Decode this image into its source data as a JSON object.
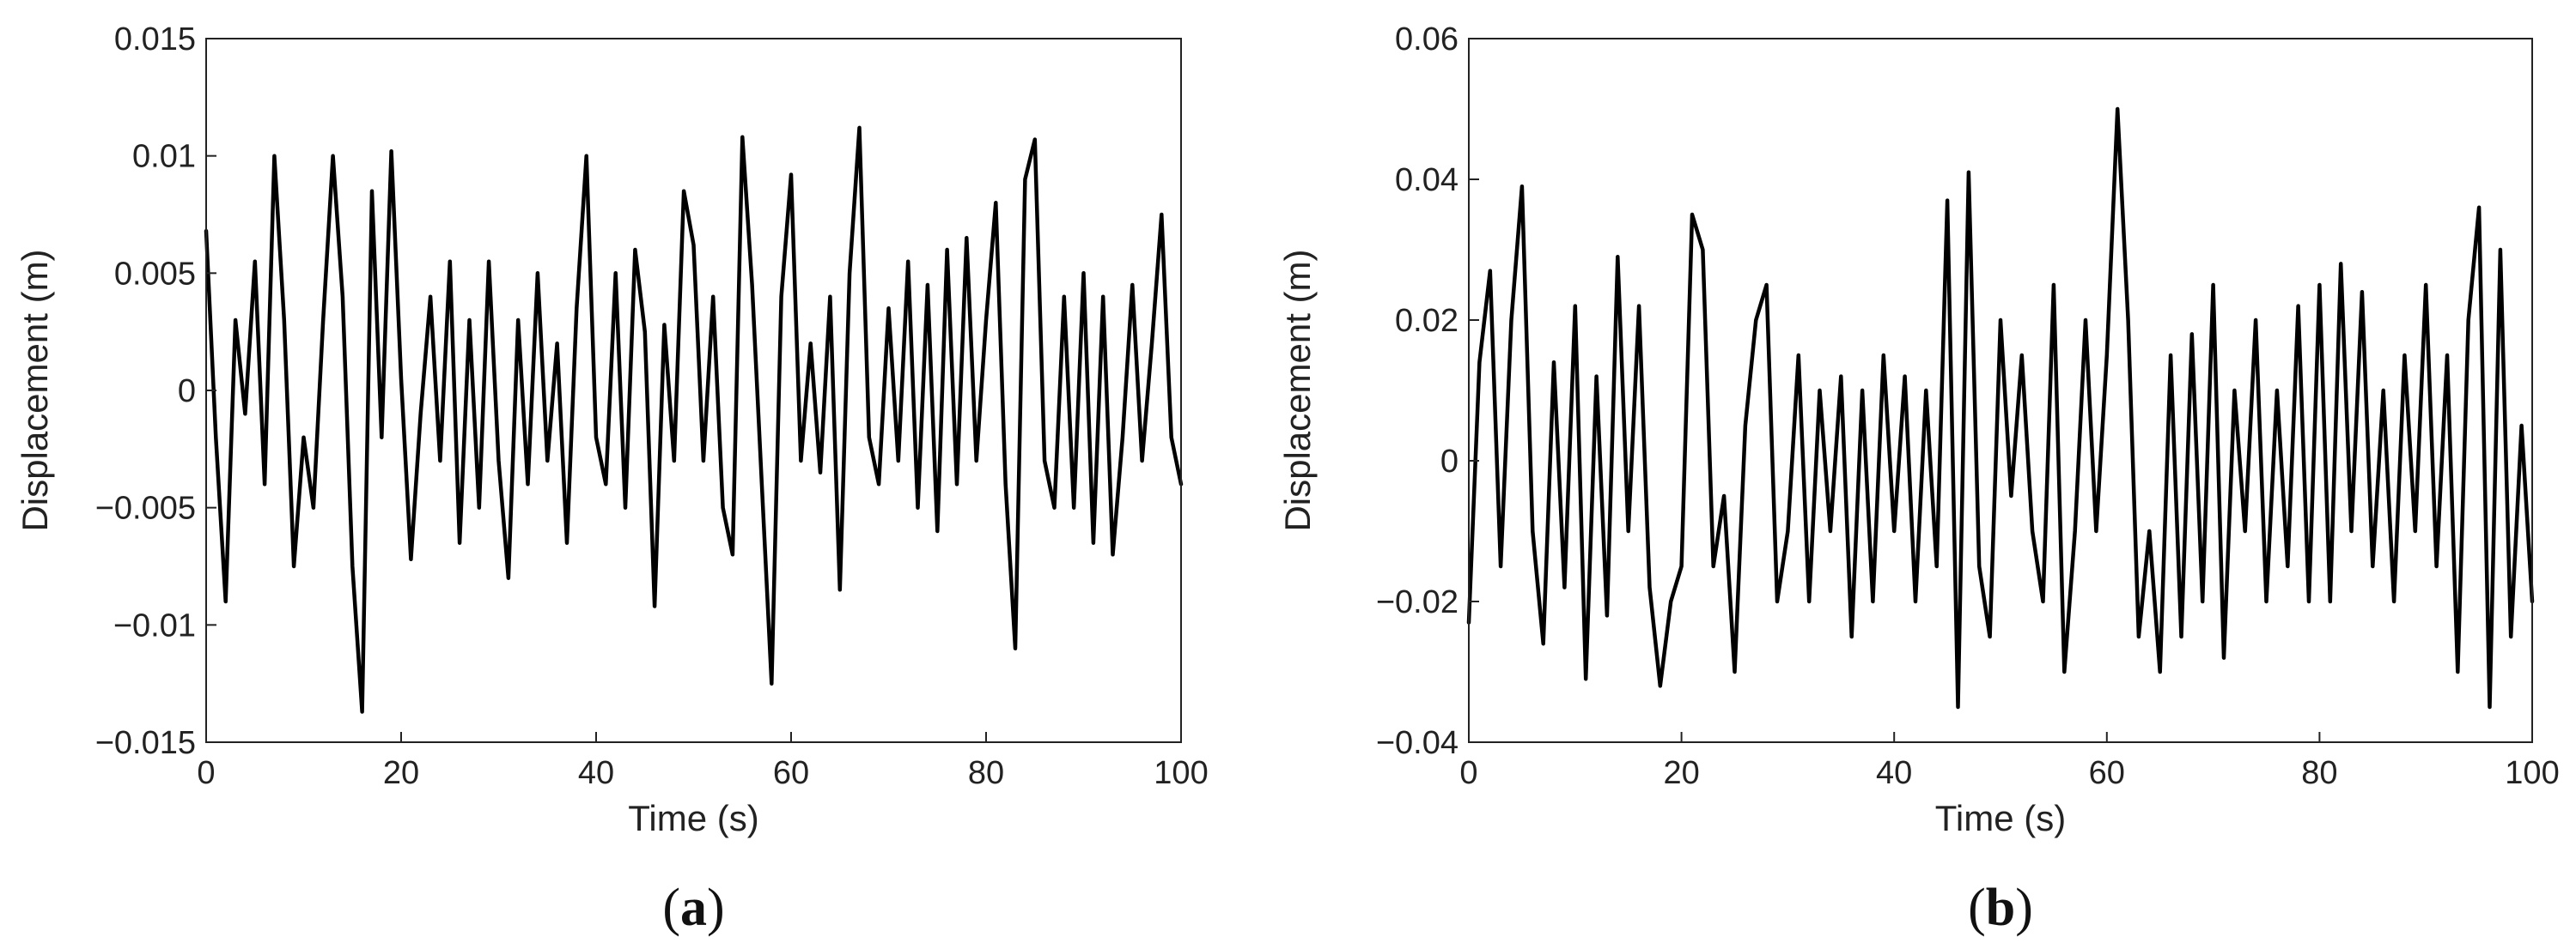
{
  "chart_data": [
    {
      "type": "line",
      "panel_label": {
        "open": "(",
        "letter": "a",
        "close": ")"
      },
      "xlabel": "Time (s)",
      "ylabel": "Displacement (m)",
      "xlim": [
        0,
        100
      ],
      "ylim": [
        -0.015,
        0.015
      ],
      "x_ticks": [
        0,
        20,
        40,
        60,
        80,
        100
      ],
      "x_tick_labels": [
        "0",
        "20",
        "40",
        "60",
        "80",
        "100"
      ],
      "y_ticks": [
        -0.015,
        -0.01,
        -0.005,
        0,
        0.005,
        0.01,
        0.015
      ],
      "y_tick_labels": [
        "−0.015",
        "−0.01",
        "−0.005",
        "0",
        "0.005",
        "0.01",
        "0.015"
      ],
      "grid": false,
      "color": "#000000",
      "series": [
        {
          "x": [
            0,
            1,
            2,
            3,
            4,
            5,
            6,
            7,
            8,
            9,
            10,
            11,
            12,
            13,
            14,
            15,
            16,
            17,
            18,
            19,
            20,
            21,
            22,
            23,
            24,
            25,
            26,
            27,
            28,
            29,
            30,
            31,
            32,
            33,
            34,
            35,
            36,
            37,
            38,
            39,
            40,
            41,
            42,
            43,
            44,
            45,
            46,
            47,
            48,
            49,
            50,
            51,
            52,
            53,
            54,
            55,
            56,
            57,
            58,
            59,
            60,
            61,
            62,
            63,
            64,
            65,
            66,
            67,
            68,
            69,
            70,
            71,
            72,
            73,
            74,
            75,
            76,
            77,
            78,
            79,
            80,
            81,
            82,
            83,
            84,
            85,
            86,
            87,
            88,
            89,
            90,
            91,
            92,
            93,
            94,
            95,
            96,
            97,
            98,
            99,
            100
          ],
          "y": [
            0.0068,
            -0.002,
            -0.009,
            0.003,
            -0.001,
            0.0055,
            -0.004,
            0.01,
            0.003,
            -0.0075,
            -0.002,
            -0.005,
            0.003,
            0.01,
            0.004,
            -0.0075,
            -0.0137,
            0.0085,
            -0.002,
            0.0102,
            0.0005,
            -0.0072,
            -0.001,
            0.004,
            -0.003,
            0.0055,
            -0.0065,
            0.003,
            -0.005,
            0.0055,
            -0.003,
            -0.008,
            0.003,
            -0.004,
            0.005,
            -0.003,
            0.002,
            -0.0065,
            0.0035,
            0.01,
            -0.002,
            -0.004,
            0.005,
            -0.005,
            0.006,
            0.0025,
            -0.0092,
            0.0028,
            -0.003,
            0.0085,
            0.0062,
            -0.003,
            0.004,
            -0.005,
            -0.007,
            0.0108,
            0.0045,
            -0.004,
            -0.0125,
            0.004,
            0.0092,
            -0.003,
            0.002,
            -0.0035,
            0.004,
            -0.0085,
            0.005,
            0.0112,
            -0.002,
            -0.004,
            0.0035,
            -0.003,
            0.0055,
            -0.005,
            0.0045,
            -0.006,
            0.006,
            -0.004,
            0.0065,
            -0.003,
            0.003,
            0.008,
            -0.004,
            -0.011,
            0.009,
            0.0107,
            -0.003,
            -0.005,
            0.004,
            -0.005,
            0.005,
            -0.0065,
            0.004,
            -0.007,
            -0.002,
            0.0045,
            -0.003,
            0.002,
            0.0075,
            -0.002,
            -0.004
          ]
        }
      ]
    },
    {
      "type": "line",
      "panel_label": {
        "open": "(",
        "letter": "b",
        "close": ")"
      },
      "xlabel": "Time (s)",
      "ylabel": "Displacement (m)",
      "xlim": [
        0,
        100
      ],
      "ylim": [
        -0.04,
        0.06
      ],
      "x_ticks": [
        0,
        20,
        40,
        60,
        80,
        100
      ],
      "x_tick_labels": [
        "0",
        "20",
        "40",
        "60",
        "80",
        "100"
      ],
      "y_ticks": [
        -0.04,
        -0.02,
        0,
        0.02,
        0.04,
        0.06
      ],
      "y_tick_labels": [
        "−0.04",
        "−0.02",
        "0",
        "0.02",
        "0.04",
        "0.06"
      ],
      "grid": false,
      "color": "#000000",
      "series": [
        {
          "x": [
            0,
            1,
            2,
            3,
            4,
            5,
            6,
            7,
            8,
            9,
            10,
            11,
            12,
            13,
            14,
            15,
            16,
            17,
            18,
            19,
            20,
            21,
            22,
            23,
            24,
            25,
            26,
            27,
            28,
            29,
            30,
            31,
            32,
            33,
            34,
            35,
            36,
            37,
            38,
            39,
            40,
            41,
            42,
            43,
            44,
            45,
            46,
            47,
            48,
            49,
            50,
            51,
            52,
            53,
            54,
            55,
            56,
            57,
            58,
            59,
            60,
            61,
            62,
            63,
            64,
            65,
            66,
            67,
            68,
            69,
            70,
            71,
            72,
            73,
            74,
            75,
            76,
            77,
            78,
            79,
            80,
            81,
            82,
            83,
            84,
            85,
            86,
            87,
            88,
            89,
            90,
            91,
            92,
            93,
            94,
            95,
            96,
            97,
            98,
            99,
            100
          ],
          "y": [
            -0.023,
            0.014,
            0.027,
            -0.015,
            0.02,
            0.039,
            -0.01,
            -0.026,
            0.014,
            -0.018,
            0.022,
            -0.031,
            0.012,
            -0.022,
            0.029,
            -0.01,
            0.022,
            -0.018,
            -0.032,
            -0.02,
            -0.015,
            0.035,
            0.03,
            -0.015,
            -0.005,
            -0.03,
            0.005,
            0.02,
            0.025,
            -0.02,
            -0.01,
            0.015,
            -0.02,
            0.01,
            -0.01,
            0.012,
            -0.025,
            0.01,
            -0.02,
            0.015,
            -0.01,
            0.012,
            -0.02,
            0.01,
            -0.015,
            0.037,
            -0.035,
            0.041,
            -0.015,
            -0.025,
            0.02,
            -0.005,
            0.015,
            -0.01,
            -0.02,
            0.025,
            -0.03,
            -0.01,
            0.02,
            -0.01,
            0.015,
            0.05,
            0.02,
            -0.025,
            -0.01,
            -0.03,
            0.015,
            -0.025,
            0.018,
            -0.02,
            0.025,
            -0.028,
            0.01,
            -0.01,
            0.02,
            -0.02,
            0.01,
            -0.015,
            0.022,
            -0.02,
            0.025,
            -0.02,
            0.028,
            -0.01,
            0.024,
            -0.015,
            0.01,
            -0.02,
            0.015,
            -0.01,
            0.025,
            -0.015,
            0.015,
            -0.03,
            0.02,
            0.036,
            -0.035,
            0.03,
            -0.025,
            0.005,
            -0.02
          ]
        }
      ]
    }
  ]
}
